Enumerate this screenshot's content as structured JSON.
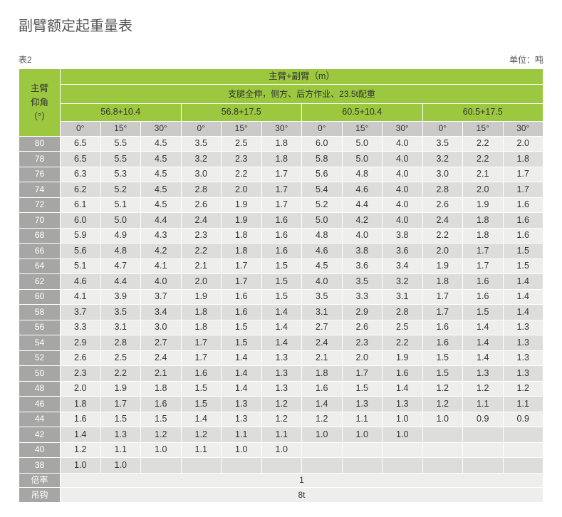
{
  "title": "副臂额定起重量表",
  "table_label": "表2",
  "unit_label": "单位：吨",
  "row_header": "主臂\n仰角\n（°）",
  "top_header": "主臂+副臂（m）",
  "sub_header": "支腿全伸，侧方、后方作业、23.5t配重",
  "groups": [
    "56.8+10.4",
    "56.8+17.5",
    "60.5+10.4",
    "60.5+17.5"
  ],
  "angles": [
    "0°",
    "15°",
    "30°",
    "0°",
    "15°",
    "30°",
    "0°",
    "15°",
    "30°",
    "0°",
    "15°",
    "30°"
  ],
  "rows": [
    {
      "a": "80",
      "v": [
        "6.5",
        "5.5",
        "4.5",
        "3.5",
        "2.5",
        "1.8",
        "6.0",
        "5.0",
        "4.0",
        "3.5",
        "2.2",
        "2.0"
      ]
    },
    {
      "a": "78",
      "v": [
        "6.5",
        "5.5",
        "4.5",
        "3.2",
        "2.3",
        "1.8",
        "5.8",
        "5.0",
        "4.0",
        "3.2",
        "2.2",
        "1.8"
      ]
    },
    {
      "a": "76",
      "v": [
        "6.3",
        "5.3",
        "4.5",
        "3.0",
        "2.2",
        "1.7",
        "5.6",
        "4.8",
        "4.0",
        "3.0",
        "2.1",
        "1.7"
      ]
    },
    {
      "a": "74",
      "v": [
        "6.2",
        "5.2",
        "4.5",
        "2.8",
        "2.0",
        "1.7",
        "5.4",
        "4.6",
        "4.0",
        "2.8",
        "2.0",
        "1.7"
      ]
    },
    {
      "a": "72",
      "v": [
        "6.1",
        "5.1",
        "4.5",
        "2.6",
        "1.9",
        "1.7",
        "5.2",
        "4.4",
        "4.0",
        "2.6",
        "1.9",
        "1.6"
      ]
    },
    {
      "a": "70",
      "v": [
        "6.0",
        "5.0",
        "4.4",
        "2.4",
        "1.9",
        "1.6",
        "5.0",
        "4.2",
        "4.0",
        "2.4",
        "1.8",
        "1.6"
      ]
    },
    {
      "a": "68",
      "v": [
        "5.9",
        "4.9",
        "4.3",
        "2.3",
        "1.8",
        "1.6",
        "4.8",
        "4.0",
        "3.8",
        "2.2",
        "1.8",
        "1.6"
      ]
    },
    {
      "a": "66",
      "v": [
        "5.6",
        "4.8",
        "4.2",
        "2.2",
        "1.8",
        "1.6",
        "4.6",
        "3.8",
        "3.6",
        "2.0",
        "1.7",
        "1.5"
      ]
    },
    {
      "a": "64",
      "v": [
        "5.1",
        "4.7",
        "4.1",
        "2.1",
        "1.7",
        "1.5",
        "4.5",
        "3.6",
        "3.4",
        "1.9",
        "1.7",
        "1.5"
      ]
    },
    {
      "a": "62",
      "v": [
        "4.6",
        "4.4",
        "4.0",
        "2.0",
        "1.7",
        "1.5",
        "4.0",
        "3.5",
        "3.2",
        "1.8",
        "1.6",
        "1.4"
      ]
    },
    {
      "a": "60",
      "v": [
        "4.1",
        "3.9",
        "3.7",
        "1.9",
        "1.6",
        "1.5",
        "3.5",
        "3.3",
        "3.1",
        "1.7",
        "1.6",
        "1.4"
      ]
    },
    {
      "a": "58",
      "v": [
        "3.7",
        "3.5",
        "3.4",
        "1.8",
        "1.6",
        "1.4",
        "3.1",
        "2.9",
        "2.8",
        "1.7",
        "1.5",
        "1.4"
      ]
    },
    {
      "a": "56",
      "v": [
        "3.3",
        "3.1",
        "3.0",
        "1.8",
        "1.5",
        "1.4",
        "2.7",
        "2.6",
        "2.5",
        "1.6",
        "1.4",
        "1.3"
      ]
    },
    {
      "a": "54",
      "v": [
        "2.9",
        "2.8",
        "2.7",
        "1.7",
        "1.5",
        "1.4",
        "2.4",
        "2.3",
        "2.2",
        "1.6",
        "1.4",
        "1.3"
      ]
    },
    {
      "a": "52",
      "v": [
        "2.6",
        "2.5",
        "2.4",
        "1.7",
        "1.4",
        "1.3",
        "2.1",
        "2.0",
        "1.9",
        "1.5",
        "1.4",
        "1.3"
      ]
    },
    {
      "a": "50",
      "v": [
        "2.3",
        "2.2",
        "2.1",
        "1.6",
        "1.4",
        "1.3",
        "1.8",
        "1.7",
        "1.6",
        "1.5",
        "1.3",
        "1.3"
      ]
    },
    {
      "a": "48",
      "v": [
        "2.0",
        "1.9",
        "1.8",
        "1.5",
        "1.4",
        "1.3",
        "1.6",
        "1.5",
        "1.4",
        "1.2",
        "1.2",
        "1.2"
      ]
    },
    {
      "a": "46",
      "v": [
        "1.8",
        "1.7",
        "1.6",
        "1.5",
        "1.3",
        "1.2",
        "1.4",
        "1.3",
        "1.3",
        "1.2",
        "1.1",
        "1.1"
      ]
    },
    {
      "a": "44",
      "v": [
        "1.6",
        "1.5",
        "1.5",
        "1.4",
        "1.3",
        "1.2",
        "1.2",
        "1.1",
        "1.0",
        "1.0",
        "0.9",
        "0.9"
      ]
    },
    {
      "a": "42",
      "v": [
        "1.4",
        "1.3",
        "1.2",
        "1.2",
        "1.1",
        "1.1",
        "1.0",
        "1.0",
        "1.0",
        "",
        "",
        ""
      ]
    },
    {
      "a": "40",
      "v": [
        "1.2",
        "1.1",
        "1.0",
        "1.1",
        "1.0",
        "1.0",
        "",
        "",
        "",
        "",
        "",
        ""
      ]
    },
    {
      "a": "38",
      "v": [
        "1.0",
        "1.0",
        "",
        "",
        "",
        "",
        "",
        "",
        "",
        "",
        "",
        ""
      ]
    }
  ],
  "footer": [
    {
      "label": "倍率",
      "value": "1"
    },
    {
      "label": "吊钩",
      "value": "8t"
    }
  ],
  "colors": {
    "green": "#9bc83e",
    "angle_hdr": "#cacac8",
    "rowlabel": "#a6a6a4",
    "even": "#eeeeec",
    "odd": "#dddddb",
    "border": "#ffffff",
    "title": "#555555"
  }
}
